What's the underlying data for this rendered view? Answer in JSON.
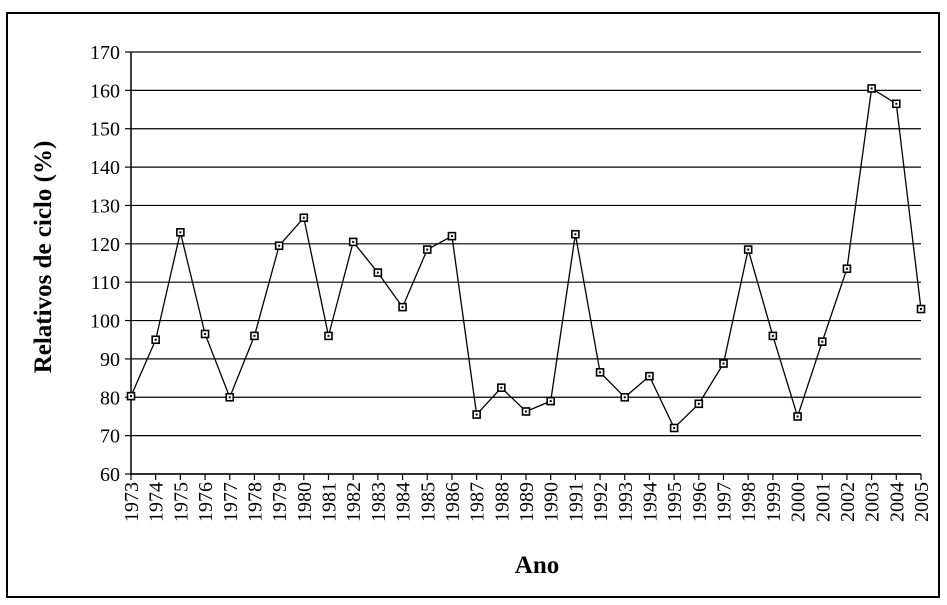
{
  "chart_data": {
    "type": "line",
    "title": "",
    "xlabel": "Ano",
    "ylabel": "Relativos de ciclo (%)",
    "ylim": [
      60,
      170
    ],
    "ystep": 10,
    "grid": true,
    "marker": "square",
    "line_color": "#000000",
    "x": [
      "1973",
      "1974",
      "1975",
      "1976",
      "1977",
      "1978",
      "1979",
      "1980",
      "1981",
      "1982",
      "1983",
      "1984",
      "1985",
      "1986",
      "1987",
      "1988",
      "1989",
      "1990",
      "1991",
      "1992",
      "1993",
      "1994",
      "1995",
      "1996",
      "1997",
      "1998",
      "1999",
      "2000",
      "2001",
      "2002",
      "2003",
      "2004",
      "2005"
    ],
    "values": [
      80.3,
      95.0,
      123.0,
      96.5,
      80.0,
      96.0,
      119.5,
      126.8,
      96.0,
      120.5,
      112.5,
      103.5,
      118.5,
      122.0,
      75.5,
      82.5,
      76.3,
      79.0,
      122.5,
      86.5,
      80.0,
      85.5,
      72.0,
      78.3,
      88.8,
      118.5,
      96.0,
      75.0,
      94.5,
      113.5,
      160.5,
      156.5,
      103.0
    ]
  }
}
